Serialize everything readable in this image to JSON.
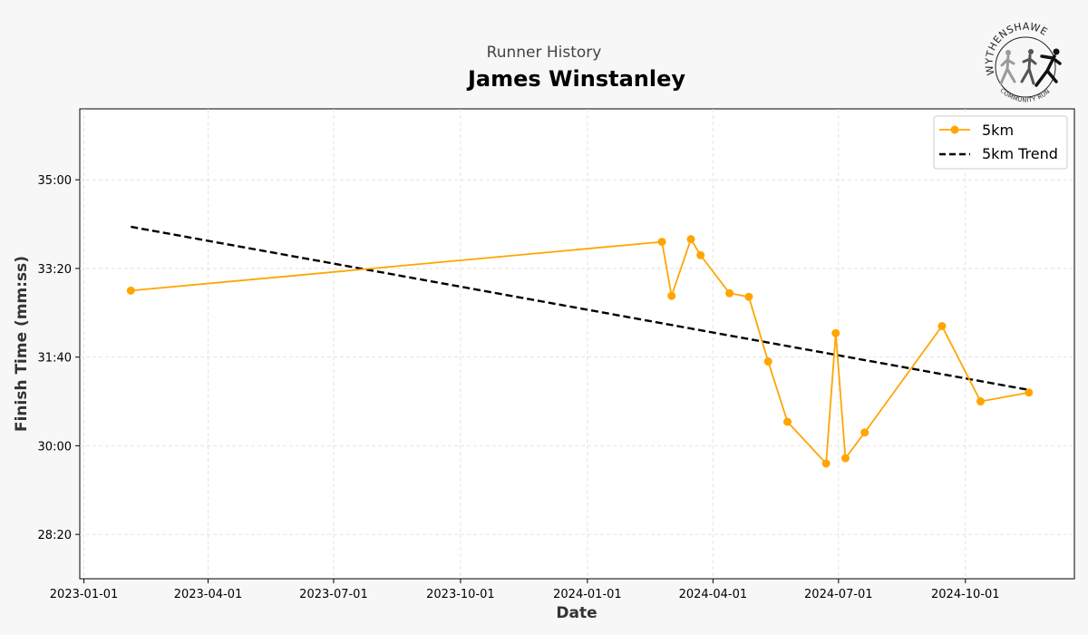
{
  "header": {
    "subtitle": "Runner History",
    "title": "James Winstanley"
  },
  "logo": {
    "name": "wythenshawe-community-run-logo",
    "text_top": "WYTHENSHAWE",
    "text_bottom": "COMMUNITY RUN"
  },
  "chart_data": {
    "type": "line",
    "xlabel": "Date",
    "ylabel": "Finish Time (mm:ss)",
    "x_ticks": [
      "2023-01-01",
      "2023-04-01",
      "2023-07-01",
      "2023-10-01",
      "2024-01-01",
      "2024-04-01",
      "2024-07-01",
      "2024-10-01"
    ],
    "y_ticks": [
      "28:20",
      "30:00",
      "31:40",
      "33:20",
      "35:00"
    ],
    "xlim": [
      "2022-12-29",
      "2024-12-19"
    ],
    "ylim": [
      "27:30",
      "36:20"
    ],
    "grid": true,
    "legend_position": "top-right",
    "colors": {
      "series": "#FFA500",
      "trend": "#000000"
    },
    "series": [
      {
        "name": "5km",
        "style": "solid-with-markers",
        "points": [
          {
            "x": "2023-02-04",
            "y": "32:55"
          },
          {
            "x": "2024-02-24",
            "y": "33:50"
          },
          {
            "x": "2024-03-02",
            "y": "32:49"
          },
          {
            "x": "2024-03-16",
            "y": "33:53"
          },
          {
            "x": "2024-03-23",
            "y": "33:35"
          },
          {
            "x": "2024-04-13",
            "y": "32:52"
          },
          {
            "x": "2024-04-27",
            "y": "32:48"
          },
          {
            "x": "2024-05-11",
            "y": "31:35"
          },
          {
            "x": "2024-05-25",
            "y": "30:27"
          },
          {
            "x": "2024-06-22",
            "y": "29:40"
          },
          {
            "x": "2024-06-29",
            "y": "32:07"
          },
          {
            "x": "2024-07-06",
            "y": "29:46"
          },
          {
            "x": "2024-07-20",
            "y": "30:15"
          },
          {
            "x": "2024-09-14",
            "y": "32:15"
          },
          {
            "x": "2024-10-12",
            "y": "30:50"
          },
          {
            "x": "2024-11-16",
            "y": "31:00"
          }
        ]
      },
      {
        "name": "5km Trend",
        "style": "dashed",
        "points": [
          {
            "x": "2023-02-04",
            "y": "34:07"
          },
          {
            "x": "2024-11-16",
            "y": "31:03"
          }
        ]
      }
    ]
  }
}
